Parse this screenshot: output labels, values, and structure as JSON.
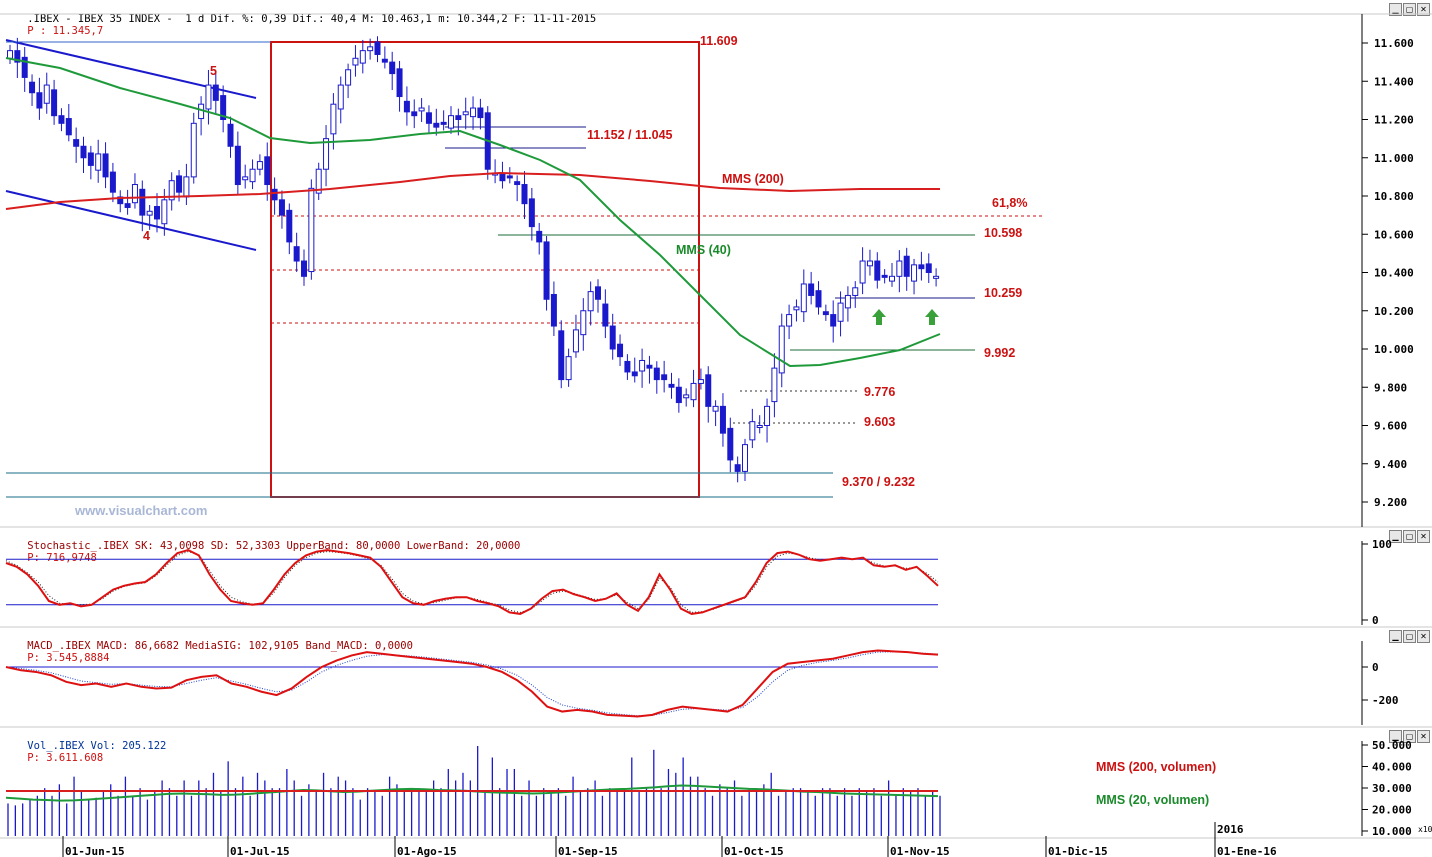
{
  "header": {
    "main": ".IBEX - IBEX 35 INDEX -  1 d Dif. %: 0,39 Dif.: 40,4 M: 10.463,1 m: 10.344,2 F: 11-11-2015",
    "price_label": "P : 11.345,7",
    "stoch_prefix": "Stochastic_.IBEX SK: 43,0098 SD: 52,3303 UpperBand: 80,0000 LowerBand: 20,0000",
    "stoch_price": "P: 716,9748",
    "macd_prefix": "MACD_.IBEX MACD: 86,6682 MediaSIG: 102,9105 Band_MACD: 0,0000",
    "macd_price": "P: 3.545,8884",
    "vol_prefix": "Vol_.IBEX Vol: 205.122",
    "vol_price": "P: 3.611.608"
  },
  "watermark": "www.visualchart.com",
  "window_buttons": {
    "minimize": "▁",
    "restore": "▢",
    "close": "✕"
  },
  "colors": {
    "candle_body": "#1a1acc",
    "trend_line": "#1a1acc",
    "mms200": "#d81e1e",
    "mms40": "#1f9a3a",
    "annotation_red": "#cc1111",
    "annotation_green": "#1a8a2a",
    "band_line": "#1a1acc",
    "arrow_green": "#3aa03a"
  },
  "chart_data": [
    {
      "type": "candlestick",
      "title": "IBEX 35 INDEX",
      "period": "1 d",
      "ylim": [
        9100,
        11700
      ],
      "y_ticks": [
        "11.600",
        "11.400",
        "11.200",
        "11.000",
        "10.800",
        "10.600",
        "10.400",
        "10.200",
        "10.000",
        "9.800",
        "9.600",
        "9.400",
        "9.200"
      ],
      "x_ticks": [
        "01-Jun-15",
        "01-Jul-15",
        "01-Ago-15",
        "01-Sep-15",
        "01-Oct-15",
        "01-Nov-15",
        "01-Dic-15",
        "01-Ene-16"
      ],
      "year_marker": "2016",
      "close_values": [
        11560,
        11500,
        11420,
        11340,
        11260,
        11380,
        11220,
        11180,
        11120,
        11060,
        11000,
        10960,
        11020,
        10900,
        10820,
        10760,
        10740,
        10860,
        10700,
        10720,
        10680,
        10780,
        10880,
        10820,
        10900,
        11180,
        11280,
        11380,
        11300,
        11200,
        11060,
        10860,
        10900,
        10940,
        10980,
        10860,
        10780,
        10700,
        10560,
        10460,
        10380,
        10840,
        10940,
        11100,
        11280,
        11380,
        11460,
        11520,
        11560,
        11580,
        11540,
        11500,
        11440,
        11320,
        11240,
        11220,
        11260,
        11180,
        11160,
        11180,
        11220,
        11200,
        11240,
        11260,
        11210,
        10940,
        10920,
        10880,
        10900,
        10860,
        10760,
        10640,
        10560,
        10260,
        10120,
        9840,
        9960,
        10100,
        10200,
        10300,
        10260,
        10120,
        10000,
        9960,
        9880,
        9860,
        9940,
        9900,
        9840,
        9840,
        9800,
        9720,
        9760,
        9820,
        9840,
        9700,
        9700,
        9560,
        9420,
        9360,
        9500,
        9620,
        9600,
        9700,
        9900,
        10120,
        10180,
        10220,
        10340,
        10280,
        10220,
        10180,
        10120,
        10240,
        10280,
        10320,
        10460,
        10460,
        10360,
        10380,
        10380,
        10460,
        10380,
        10440,
        10420,
        10400,
        10380
      ],
      "mms200_label": "MMS (200)",
      "mms40_label": "MMS (40)",
      "wave_labels": [
        "5",
        "4"
      ],
      "levels": [
        {
          "label": "11.609",
          "value": 11609
        },
        {
          "label": "11.152 / 11.045",
          "value": 11152
        },
        {
          "label": "61,8%",
          "value": 10700
        },
        {
          "label": "10.598",
          "value": 10598
        },
        {
          "label": "10.259",
          "value": 10259
        },
        {
          "label": "9.992",
          "value": 9992
        },
        {
          "label": "9.776",
          "value": 9776
        },
        {
          "label": "9.603",
          "value": 9603
        },
        {
          "label": "9.370 / 9.232",
          "value": 9370
        }
      ]
    },
    {
      "type": "line",
      "title": "Stochastic_.IBEX",
      "ylim": [
        0,
        100
      ],
      "y_ticks": [
        "100",
        "0"
      ],
      "upper_band": 80,
      "lower_band": 20,
      "sk": [
        75,
        70,
        60,
        45,
        25,
        20,
        22,
        18,
        20,
        30,
        40,
        45,
        48,
        50,
        60,
        75,
        88,
        92,
        85,
        60,
        40,
        25,
        22,
        20,
        22,
        40,
        60,
        75,
        85,
        90,
        92,
        90,
        88,
        85,
        82,
        70,
        50,
        30,
        22,
        20,
        25,
        28,
        30,
        30,
        25,
        22,
        18,
        10,
        8,
        15,
        28,
        38,
        40,
        34,
        30,
        25,
        28,
        35,
        20,
        12,
        30,
        60,
        40,
        15,
        8,
        10,
        15,
        20,
        25,
        30,
        50,
        75,
        88,
        90,
        86,
        80,
        78,
        80,
        82,
        80,
        82,
        72,
        70,
        72,
        66,
        70,
        58,
        45
      ],
      "sd": [
        78,
        72,
        62,
        50,
        32,
        22,
        21,
        20,
        21,
        28,
        38,
        44,
        47,
        49,
        58,
        72,
        85,
        90,
        86,
        65,
        45,
        30,
        24,
        21,
        22,
        36,
        56,
        72,
        82,
        88,
        90,
        89,
        87,
        84,
        80,
        72,
        55,
        35,
        25,
        21,
        23,
        26,
        29,
        30,
        27,
        23,
        20,
        13,
        10,
        14,
        25,
        35,
        38,
        35,
        31,
        27,
        28,
        33,
        23,
        15,
        27,
        55,
        43,
        20,
        10,
        11,
        14,
        19,
        24,
        29,
        46,
        70,
        84,
        88,
        86,
        82,
        79,
        80,
        81,
        80,
        81,
        75,
        71,
        71,
        68,
        69,
        61,
        50
      ]
    },
    {
      "type": "line",
      "title": "MACD_.IBEX",
      "ylim": [
        -350,
        120
      ],
      "y_ticks": [
        "0",
        "-200"
      ],
      "band": 0,
      "macd": [
        0,
        -20,
        -30,
        -50,
        -90,
        -110,
        -100,
        -120,
        -100,
        -120,
        -130,
        -125,
        -80,
        -60,
        -50,
        -100,
        -120,
        -150,
        -170,
        -130,
        -60,
        0,
        40,
        70,
        90,
        80,
        70,
        60,
        50,
        40,
        30,
        20,
        0,
        -30,
        -80,
        -150,
        -240,
        -270,
        -260,
        -270,
        -290,
        -295,
        -300,
        -290,
        -260,
        -240,
        -250,
        -260,
        -270,
        -230,
        -130,
        -30,
        20,
        30,
        40,
        50,
        70,
        90,
        100,
        95,
        90,
        80,
        75
      ],
      "signal": [
        0,
        -10,
        -20,
        -35,
        -60,
        -85,
        -95,
        -105,
        -100,
        -110,
        -118,
        -120,
        -100,
        -80,
        -65,
        -85,
        -105,
        -130,
        -150,
        -140,
        -90,
        -30,
        10,
        40,
        65,
        75,
        72,
        66,
        58,
        48,
        38,
        28,
        12,
        -12,
        -50,
        -110,
        -185,
        -230,
        -250,
        -262,
        -278,
        -288,
        -295,
        -293,
        -276,
        -256,
        -252,
        -256,
        -262,
        -245,
        -180,
        -90,
        -20,
        10,
        28,
        40,
        55,
        75,
        90,
        92,
        90,
        84,
        78
      ]
    },
    {
      "type": "bar",
      "title": "Vol_.IBEX",
      "ylim": [
        5000,
        52000
      ],
      "y_ticks": [
        "50.000",
        "40.000",
        "30.000",
        "20.000",
        "10.000"
      ],
      "y_scale_tag": "x10",
      "mms200_vol_label": "MMS (200, volumen)",
      "mms20_vol_label": "MMS (20, volumen)",
      "values": [
        22,
        21,
        22,
        24,
        26,
        30,
        26,
        32,
        22,
        36,
        28,
        24,
        25,
        29,
        32,
        26,
        36,
        26,
        30,
        24,
        28,
        34,
        30,
        26,
        34,
        26,
        34,
        30,
        38,
        28,
        44,
        30,
        36,
        26,
        38,
        34,
        30,
        30,
        40,
        34,
        26,
        32,
        28,
        38,
        30,
        36,
        34,
        30,
        24,
        30,
        28,
        26,
        36,
        32,
        28,
        30,
        30,
        28,
        34,
        30,
        40,
        34,
        38,
        34,
        52,
        28,
        46,
        30,
        40,
        40,
        26,
        34,
        26,
        30,
        28,
        30,
        26,
        36,
        28,
        30,
        34,
        26,
        30,
        28,
        30,
        46,
        28,
        30,
        50,
        30,
        40,
        38,
        46,
        36,
        36,
        30,
        26,
        32,
        30,
        34,
        26,
        30,
        30,
        32,
        38,
        26,
        28,
        30,
        30,
        28,
        26,
        30,
        30,
        26,
        30,
        26,
        30,
        28,
        30,
        26,
        34,
        26,
        30,
        28,
        30,
        26,
        28,
        26
      ],
      "mms200_vol": 28.5,
      "mms20_vol": [
        25,
        24.5,
        24,
        23.8,
        23.5,
        23.6,
        24,
        24.5,
        25,
        25.5,
        26,
        26.5,
        27,
        27.2,
        27,
        26.8,
        26.5,
        26.6,
        27,
        27.5,
        28,
        28.5,
        29,
        28.8,
        28.4,
        28,
        28.2,
        28.6,
        29,
        29.4,
        29.6,
        29.4,
        29,
        28.8,
        28.6,
        28.2,
        27.8,
        27.6,
        27.4,
        27.2,
        27.4,
        27.8,
        28.2,
        28.6,
        29,
        29.4,
        29.6,
        30,
        30.4,
        31,
        31.4,
        31.2,
        30.8,
        30.4,
        30,
        29.6,
        29.4,
        29,
        28.6,
        28.2,
        28,
        27.6,
        27.2,
        27,
        26.8,
        26.6,
        26.4,
        26.2,
        26,
        25.8
      ]
    }
  ]
}
